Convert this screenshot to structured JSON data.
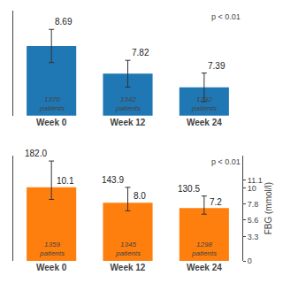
{
  "chart_data": [
    {
      "type": "bar",
      "categories": [
        "Week 0",
        "Week 12",
        "Week 24"
      ],
      "values": [
        8.69,
        7.82,
        7.39
      ],
      "errors_upper": [
        0.52,
        0.42,
        0.45
      ],
      "errors_lower": [
        0.52,
        0.42,
        0.45
      ],
      "data_labels": true,
      "ylim": [
        6.5,
        9.8
      ],
      "yticks": [],
      "grid": false,
      "annotations": [
        {
          "text": "1370\npatients",
          "category": "Week 0"
        },
        {
          "text": "1342\npatients",
          "category": "Week 12"
        },
        {
          "text": "1292\npatients",
          "category": "Week 24"
        },
        {
          "text": "p < 0.01"
        }
      ]
    },
    {
      "type": "bar",
      "categories": [
        "Week 0",
        "Week 12",
        "Week 24"
      ],
      "series": [
        {
          "values": [
            182.0,
            143.9,
            130.5
          ],
          "value_labels": [
            "182.0",
            "143.9",
            "130.5"
          ],
          "errors_upper": [
            65.0,
            38.0,
            30.0
          ],
          "errors_lower": [
            30.0,
            20.0,
            15.0
          ]
        },
        {
          "type": "text",
          "axis": "y2",
          "values": [
            10.1,
            8.0,
            7.2
          ],
          "value_labels": [
            "10.1",
            "8.0",
            "7.2"
          ]
        }
      ],
      "data_labels": true,
      "ylim": [
        0,
        260
      ],
      "yticks": [],
      "y2lim": [
        0,
        14.444444444444445
      ],
      "y2ticks": [
        0,
        3.3,
        5.6,
        7.8,
        10,
        11.1
      ],
      "y2label": "FBG (mmol/l)",
      "grid": false,
      "annotations": [
        {
          "text": "1359\npatients",
          "category": "Week 0"
        },
        {
          "text": "1345\npatients",
          "category": "Week 12"
        },
        {
          "text": "1298\npatients",
          "category": "Week 24"
        },
        {
          "text": "p < 0.01"
        }
      ]
    }
  ]
}
